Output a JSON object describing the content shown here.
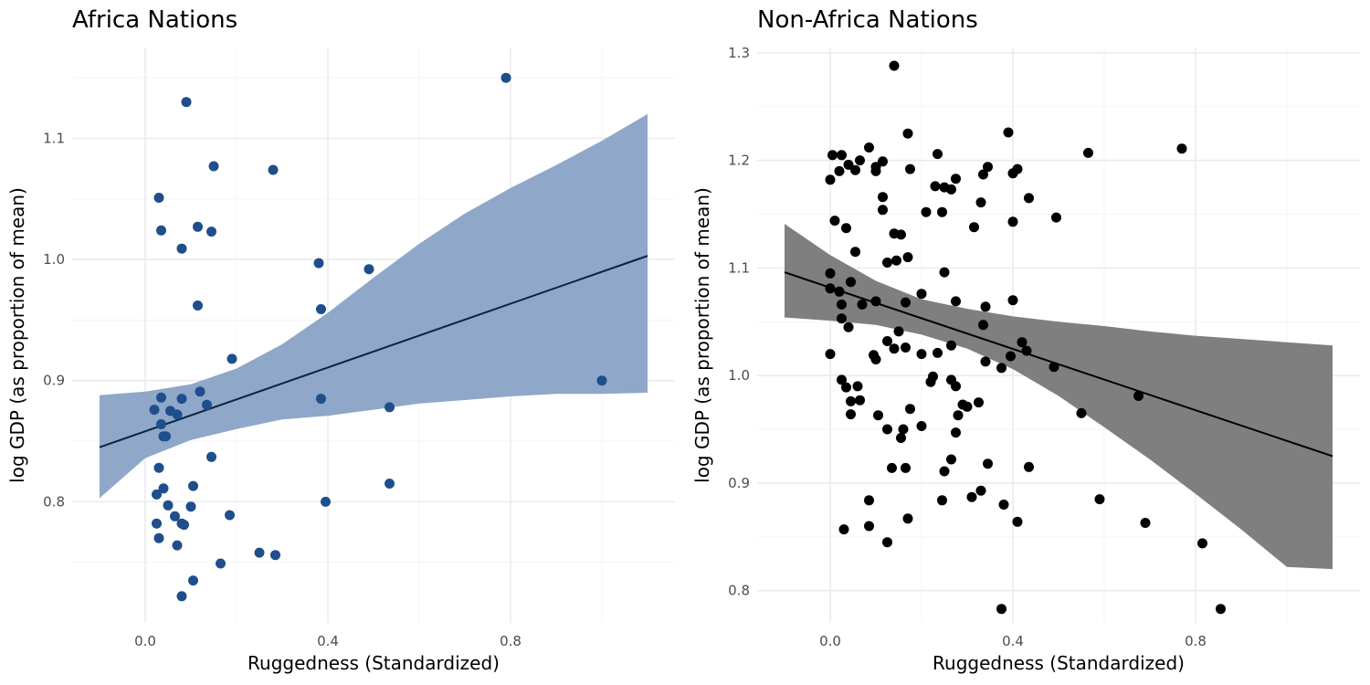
{
  "chart_data": [
    {
      "type": "scatter",
      "title": "Africa Nations",
      "xlabel": "Ruggedness (Standardized)",
      "ylabel": "log GDP (as proportion of mean)",
      "xlim": [
        -0.16,
        1.16
      ],
      "ylim": [
        0.7,
        1.175
      ],
      "xticks": [
        0.0,
        0.4,
        0.8
      ],
      "xtick_labels": [
        "0.0",
        "0.4",
        "0.8"
      ],
      "yticks": [
        0.8,
        0.9,
        1.0,
        1.1
      ],
      "ytick_labels": [
        "0.8",
        "0.9",
        "1.0",
        "1.1"
      ],
      "grid": true,
      "point_color": "#1f4e8c",
      "band_color": "#8fa7c8",
      "line_color": "#0d2340",
      "points": [
        [
          0.09,
          1.13
        ],
        [
          0.79,
          1.15
        ],
        [
          0.03,
          1.051
        ],
        [
          0.15,
          1.077
        ],
        [
          0.28,
          1.074
        ],
        [
          0.035,
          1.024
        ],
        [
          0.115,
          1.027
        ],
        [
          0.145,
          1.023
        ],
        [
          0.08,
          1.009
        ],
        [
          0.38,
          0.997
        ],
        [
          0.49,
          0.992
        ],
        [
          0.115,
          0.962
        ],
        [
          0.385,
          0.959
        ],
        [
          0.19,
          0.918
        ],
        [
          1.0,
          0.9
        ],
        [
          0.02,
          0.876
        ],
        [
          0.035,
          0.886
        ],
        [
          0.055,
          0.875
        ],
        [
          0.07,
          0.872
        ],
        [
          0.08,
          0.885
        ],
        [
          0.12,
          0.891
        ],
        [
          0.135,
          0.88
        ],
        [
          0.385,
          0.885
        ],
        [
          0.535,
          0.878
        ],
        [
          0.035,
          0.864
        ],
        [
          0.04,
          0.854
        ],
        [
          0.045,
          0.854
        ],
        [
          0.145,
          0.837
        ],
        [
          0.03,
          0.828
        ],
        [
          0.535,
          0.815
        ],
        [
          0.025,
          0.806
        ],
        [
          0.04,
          0.811
        ],
        [
          0.105,
          0.813
        ],
        [
          0.05,
          0.797
        ],
        [
          0.1,
          0.796
        ],
        [
          0.395,
          0.8
        ],
        [
          0.065,
          0.788
        ],
        [
          0.185,
          0.789
        ],
        [
          0.025,
          0.782
        ],
        [
          0.08,
          0.782
        ],
        [
          0.085,
          0.781
        ],
        [
          0.03,
          0.77
        ],
        [
          0.07,
          0.764
        ],
        [
          0.25,
          0.758
        ],
        [
          0.285,
          0.756
        ],
        [
          0.165,
          0.749
        ],
        [
          0.105,
          0.735
        ],
        [
          0.08,
          0.722
        ]
      ],
      "fit_line": [
        [
          -0.1,
          0.845
        ],
        [
          1.1,
          1.003
        ]
      ],
      "band_x": [
        -0.1,
        0.0,
        0.1,
        0.2,
        0.3,
        0.4,
        0.5,
        0.6,
        0.7,
        0.8,
        0.9,
        1.0,
        1.1
      ],
      "band_upper": [
        0.888,
        0.891,
        0.897,
        0.91,
        0.93,
        0.956,
        0.985,
        1.013,
        1.038,
        1.059,
        1.078,
        1.098,
        1.12
      ],
      "band_lower": [
        0.803,
        0.836,
        0.851,
        0.86,
        0.868,
        0.871,
        0.876,
        0.881,
        0.884,
        0.887,
        0.889,
        0.889,
        0.89
      ]
    },
    {
      "type": "scatter",
      "title": "Non-Africa Nations",
      "xlabel": "Ruggedness (Standardized)",
      "ylabel": "log GDP (as proportion of mean)",
      "xlim": [
        -0.16,
        1.16
      ],
      "ylim": [
        0.77,
        1.305
      ],
      "xticks": [
        0.0,
        0.4,
        0.8
      ],
      "xtick_labels": [
        "0.0",
        "0.4",
        "0.8"
      ],
      "yticks": [
        0.8,
        0.9,
        1.0,
        1.1,
        1.2,
        1.3
      ],
      "ytick_labels": [
        "0.8",
        "0.9",
        "1.0",
        "1.1",
        "1.2",
        "1.3"
      ],
      "grid": true,
      "point_color": "#000000",
      "band_color": "#7f7f7f",
      "line_color": "#000000",
      "points": [
        [
          0.14,
          1.288
        ],
        [
          0.17,
          1.225
        ],
        [
          0.39,
          1.226
        ],
        [
          0.77,
          1.211
        ],
        [
          0.565,
          1.207
        ],
        [
          0.005,
          1.205
        ],
        [
          0.025,
          1.205
        ],
        [
          0.065,
          1.2
        ],
        [
          0.1,
          1.194
        ],
        [
          0.115,
          1.199
        ],
        [
          0.175,
          1.192
        ],
        [
          0.235,
          1.206
        ],
        [
          0.265,
          1.173
        ],
        [
          0.345,
          1.194
        ],
        [
          0.4,
          1.188
        ],
        [
          0.41,
          1.192
        ],
        [
          0.0,
          1.182
        ],
        [
          0.02,
          1.19
        ],
        [
          0.04,
          1.196
        ],
        [
          0.055,
          1.191
        ],
        [
          0.085,
          1.212
        ],
        [
          0.1,
          1.19
        ],
        [
          0.275,
          1.183
        ],
        [
          0.335,
          1.187
        ],
        [
          0.115,
          1.166
        ],
        [
          0.23,
          1.176
        ],
        [
          0.25,
          1.175
        ],
        [
          0.33,
          1.161
        ],
        [
          0.435,
          1.165
        ],
        [
          0.115,
          1.154
        ],
        [
          0.21,
          1.152
        ],
        [
          0.245,
          1.152
        ],
        [
          0.01,
          1.144
        ],
        [
          0.035,
          1.137
        ],
        [
          0.14,
          1.132
        ],
        [
          0.155,
          1.131
        ],
        [
          0.315,
          1.138
        ],
        [
          0.4,
          1.143
        ],
        [
          0.495,
          1.147
        ],
        [
          0.055,
          1.115
        ],
        [
          0.125,
          1.105
        ],
        [
          0.17,
          1.11
        ],
        [
          0.145,
          1.107
        ],
        [
          0.25,
          1.096
        ],
        [
          0.0,
          1.095
        ],
        [
          0.045,
          1.087
        ],
        [
          0.0,
          1.081
        ],
        [
          0.02,
          1.078
        ],
        [
          0.2,
          1.076
        ],
        [
          0.025,
          1.066
        ],
        [
          0.07,
          1.066
        ],
        [
          0.1,
          1.069
        ],
        [
          0.165,
          1.068
        ],
        [
          0.275,
          1.069
        ],
        [
          0.34,
          1.064
        ],
        [
          0.4,
          1.07
        ],
        [
          0.025,
          1.053
        ],
        [
          0.04,
          1.045
        ],
        [
          0.15,
          1.041
        ],
        [
          0.335,
          1.047
        ],
        [
          0.0,
          1.02
        ],
        [
          0.095,
          1.019
        ],
        [
          0.1,
          1.015
        ],
        [
          0.125,
          1.032
        ],
        [
          0.14,
          1.025
        ],
        [
          0.165,
          1.026
        ],
        [
          0.2,
          1.02
        ],
        [
          0.235,
          1.021
        ],
        [
          0.265,
          1.028
        ],
        [
          0.34,
          1.013
        ],
        [
          0.395,
          1.018
        ],
        [
          0.42,
          1.031
        ],
        [
          0.43,
          1.023
        ],
        [
          0.375,
          1.007
        ],
        [
          0.49,
          1.008
        ],
        [
          0.025,
          0.996
        ],
        [
          0.035,
          0.989
        ],
        [
          0.06,
          0.99
        ],
        [
          0.225,
          0.999
        ],
        [
          0.22,
          0.994
        ],
        [
          0.265,
          0.996
        ],
        [
          0.275,
          0.99
        ],
        [
          0.045,
          0.976
        ],
        [
          0.065,
          0.977
        ],
        [
          0.045,
          0.964
        ],
        [
          0.105,
          0.963
        ],
        [
          0.175,
          0.969
        ],
        [
          0.28,
          0.963
        ],
        [
          0.29,
          0.973
        ],
        [
          0.3,
          0.971
        ],
        [
          0.325,
          0.975
        ],
        [
          0.55,
          0.965
        ],
        [
          0.675,
          0.981
        ],
        [
          0.125,
          0.95
        ],
        [
          0.155,
          0.942
        ],
        [
          0.16,
          0.95
        ],
        [
          0.2,
          0.953
        ],
        [
          0.275,
          0.947
        ],
        [
          0.265,
          0.922
        ],
        [
          0.135,
          0.914
        ],
        [
          0.165,
          0.914
        ],
        [
          0.25,
          0.911
        ],
        [
          0.345,
          0.918
        ],
        [
          0.435,
          0.915
        ],
        [
          0.085,
          0.884
        ],
        [
          0.245,
          0.884
        ],
        [
          0.31,
          0.887
        ],
        [
          0.33,
          0.893
        ],
        [
          0.38,
          0.88
        ],
        [
          0.59,
          0.885
        ],
        [
          0.17,
          0.867
        ],
        [
          0.03,
          0.857
        ],
        [
          0.085,
          0.86
        ],
        [
          0.41,
          0.864
        ],
        [
          0.69,
          0.863
        ],
        [
          0.125,
          0.845
        ],
        [
          0.815,
          0.844
        ],
        [
          0.375,
          0.783
        ],
        [
          0.855,
          0.783
        ]
      ],
      "fit_line": [
        [
          -0.1,
          1.096
        ],
        [
          1.1,
          0.925
        ]
      ],
      "band_x": [
        -0.1,
        0.0,
        0.1,
        0.2,
        0.3,
        0.4,
        0.5,
        0.6,
        0.7,
        0.8,
        0.9,
        1.0,
        1.1
      ],
      "band_upper": [
        1.141,
        1.112,
        1.088,
        1.071,
        1.062,
        1.055,
        1.05,
        1.046,
        1.041,
        1.037,
        1.034,
        1.031,
        1.028
      ],
      "band_lower": [
        1.054,
        1.051,
        1.047,
        1.038,
        1.025,
        1.006,
        0.981,
        0.952,
        0.922,
        0.89,
        0.857,
        0.822,
        0.82
      ]
    }
  ]
}
